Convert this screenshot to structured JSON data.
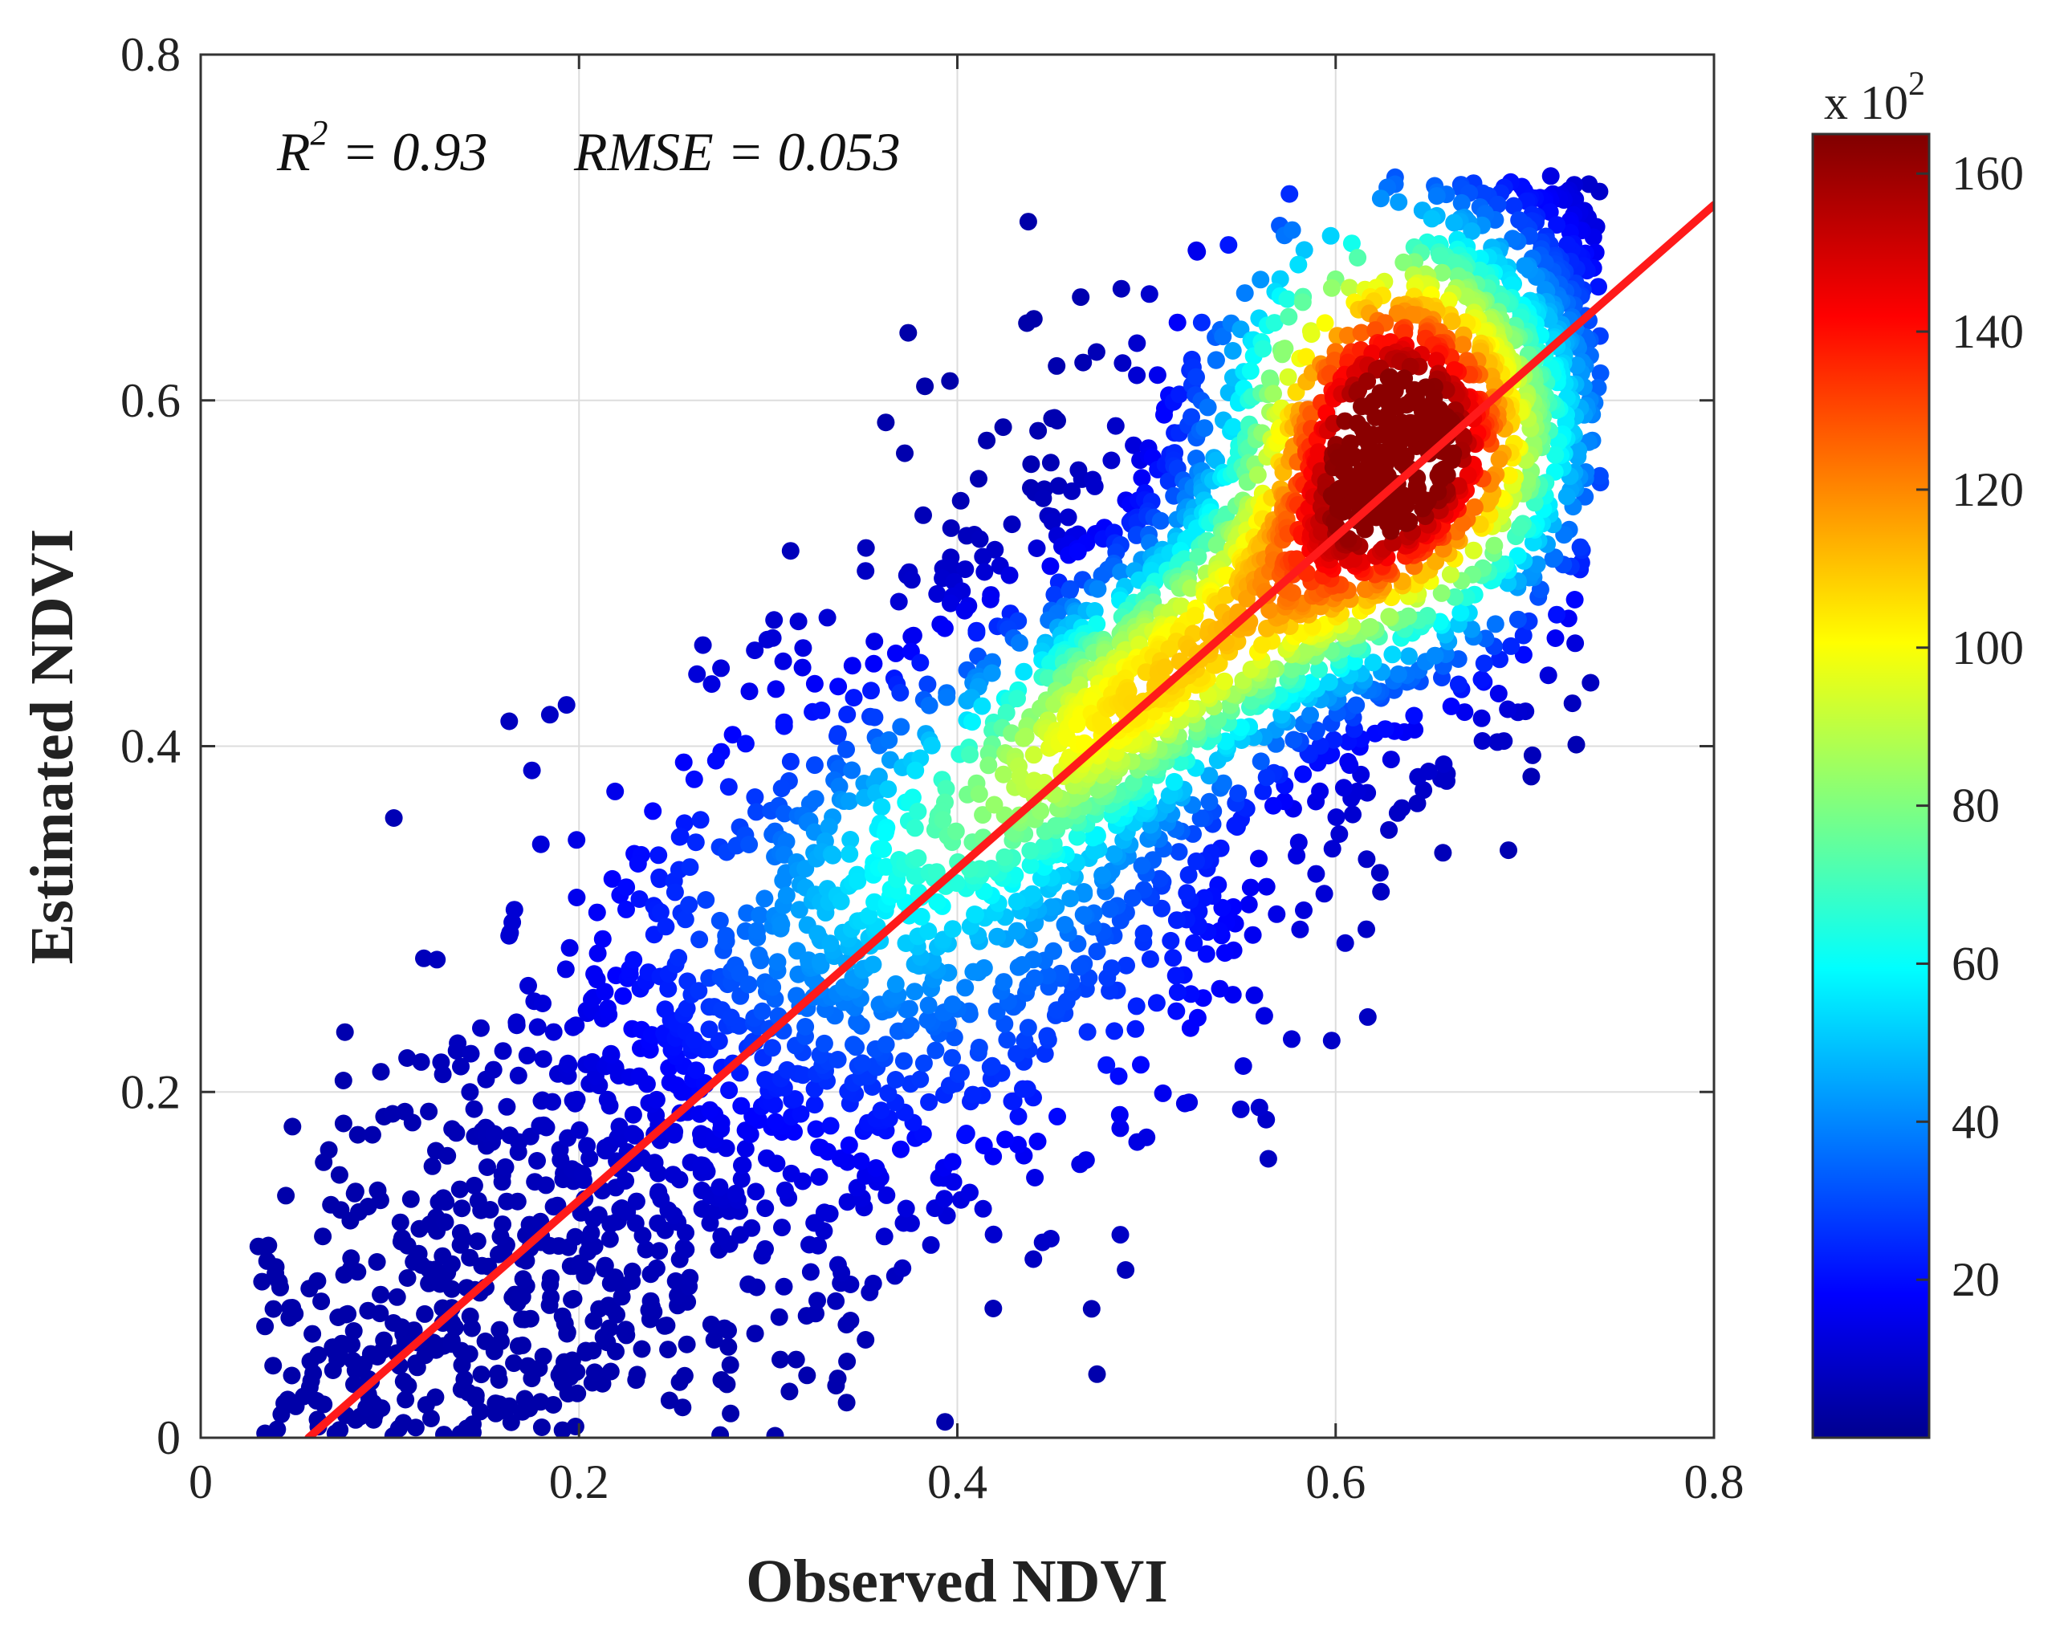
{
  "chart_data": {
    "type": "scatter",
    "style": "density-colored scatter (hexbin-like)",
    "xlabel": "Observed NDVI",
    "ylabel": "Estimated NDVI",
    "xlim": [
      0,
      0.8
    ],
    "ylim": [
      0,
      0.8
    ],
    "xticks": [
      "0",
      "0.2",
      "0.4",
      "0.6",
      "0.8"
    ],
    "yticks": [
      "0",
      "0.2",
      "0.4",
      "0.6",
      "0.8"
    ],
    "xtick_values": [
      0,
      0.2,
      0.4,
      0.6,
      0.8
    ],
    "ytick_values": [
      0,
      0.2,
      0.4,
      0.6,
      0.8
    ],
    "grid": true,
    "annotation": {
      "r2_symbol": "R",
      "r2_exponent": "2",
      "r2_text": " = 0.93",
      "rmse_text": "RMSE = 0.053"
    },
    "fit_line": {
      "color": "#ff1a1a",
      "x": [
        0.057,
        0.8
      ],
      "y": [
        0.0,
        0.713
      ]
    },
    "density_core": {
      "center_x": 0.632,
      "center_y": 0.59,
      "description_values": "highest point density near observed 0.63, estimated 0.59"
    },
    "colorbar": {
      "label_prefix": "x 10",
      "label_exponent": "2",
      "range": [
        0,
        165
      ],
      "ticks": [
        "20",
        "40",
        "60",
        "80",
        "100",
        "120",
        "140",
        "160"
      ],
      "tick_values": [
        20,
        40,
        60,
        80,
        100,
        120,
        140,
        160
      ],
      "colormap": "jet"
    },
    "colors": {
      "low": "#00008b",
      "high": "#800000"
    }
  }
}
